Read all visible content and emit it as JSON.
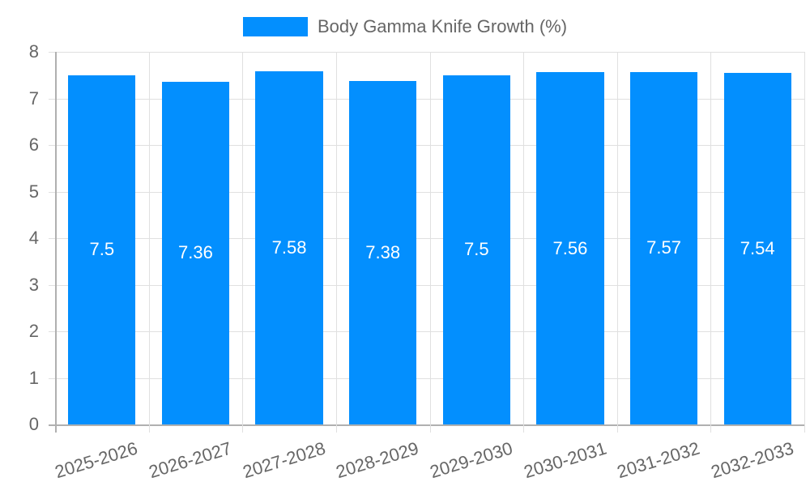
{
  "chart_data": {
    "type": "bar",
    "title": "",
    "categories": [
      "2025-2026",
      "2026-2027",
      "2027-2028",
      "2028-2029",
      "2029-2030",
      "2030-2031",
      "2031-2032",
      "2032-2033"
    ],
    "series": [
      {
        "name": "Body Gamma Knife Growth (%)",
        "values": [
          7.5,
          7.36,
          7.58,
          7.38,
          7.5,
          7.56,
          7.57,
          7.54
        ],
        "color": "#038ffe"
      }
    ],
    "xlabel": "",
    "ylabel": "",
    "ylim": [
      0,
      8
    ],
    "yticks": [
      "0",
      "1",
      "2",
      "3",
      "4",
      "5",
      "6",
      "7",
      "8"
    ],
    "grid": true,
    "legend_position": "top",
    "data_labels": [
      "7.5",
      "7.36",
      "7.58",
      "7.38",
      "7.5",
      "7.56",
      "7.57",
      "7.54"
    ]
  },
  "legend": {
    "label": "Body Gamma Knife Growth (%)",
    "color": "#038ffe"
  }
}
